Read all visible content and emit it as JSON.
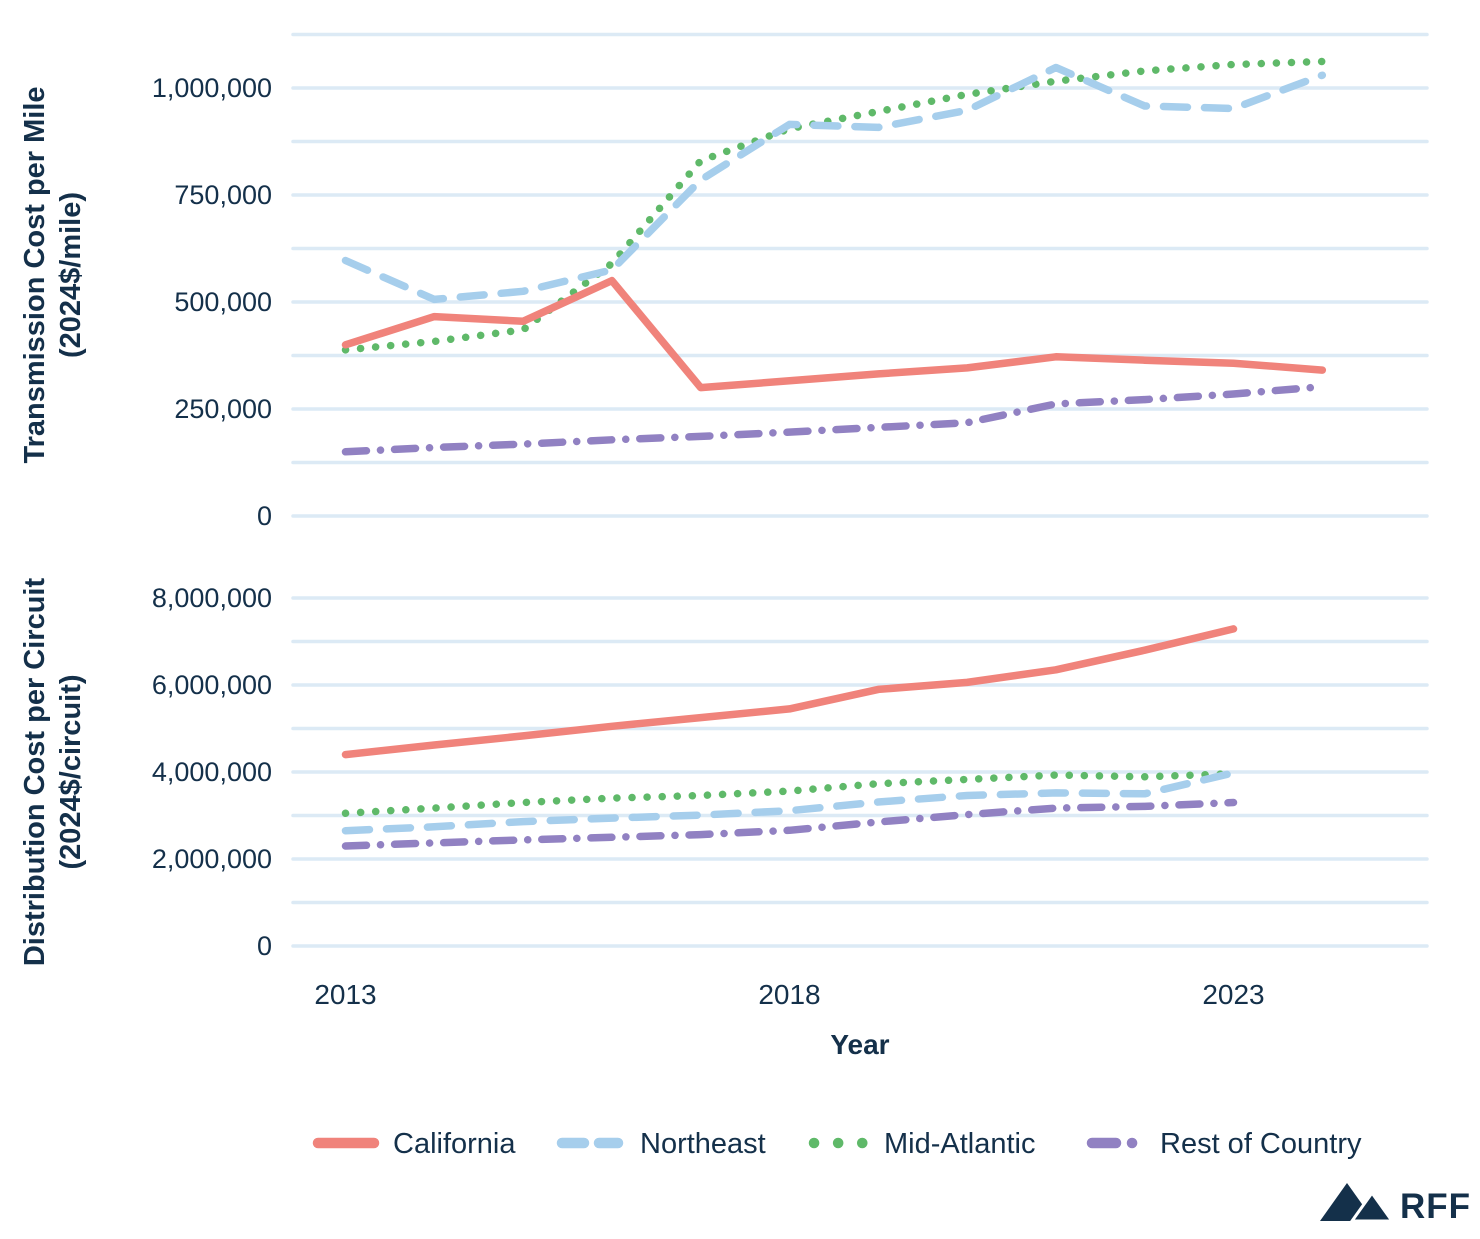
{
  "colors": {
    "california": "#F0837B",
    "northeast": "#A6CEEC",
    "mid_atlantic": "#5FB969",
    "rest_of_country": "#9181C2",
    "gridline": "#DCEAF5",
    "text": "#14304A",
    "logo": "#14304A",
    "background": "#FFFFFF"
  },
  "x_axis": {
    "title": "Year",
    "ticks": [
      {
        "value": 2013,
        "label": "2013"
      },
      {
        "value": 2018,
        "label": "2018"
      },
      {
        "value": 2023,
        "label": "2023"
      }
    ]
  },
  "legend": [
    {
      "label": "California",
      "color": "california",
      "dash": "solid"
    },
    {
      "label": "Northeast",
      "color": "northeast",
      "dash": "dashed"
    },
    {
      "label": "Mid-Atlantic",
      "color": "mid_atlantic",
      "dash": "dotted"
    },
    {
      "label": "Rest of Country",
      "color": "rest_of_country",
      "dash": "dashdot"
    }
  ],
  "logo": {
    "text": "RFF"
  },
  "chart_data": [
    {
      "type": "line",
      "id": "transmission",
      "y_axis": {
        "title_line1": "Transmission Cost per Mile",
        "title_line2": "(2024$/mile)",
        "max_grid": 1125000,
        "grid_step": 125000,
        "ticks": [
          {
            "value": 1000000,
            "label": "1,000,000"
          },
          {
            "value": 750000,
            "label": "750,000"
          },
          {
            "value": 500000,
            "label": "500,000"
          },
          {
            "value": 250000,
            "label": "250,000"
          },
          {
            "value": 0,
            "label": "0"
          }
        ]
      },
      "x": [
        2013,
        2014,
        2015,
        2016,
        2017,
        2018,
        2019,
        2020,
        2021,
        2022,
        2023,
        2024
      ],
      "series": [
        {
          "name": "Mid-Atlantic",
          "color": "mid_atlantic",
          "dash": "dotted",
          "values": [
            388000,
            408000,
            435000,
            590000,
            830000,
            905000,
            945000,
            985000,
            1016000,
            1040000,
            1055000,
            1062000
          ]
        },
        {
          "name": "Northeast",
          "color": "northeast",
          "dash": "dashed",
          "values": [
            597000,
            506000,
            525000,
            575000,
            785000,
            915000,
            908000,
            948000,
            1048000,
            958000,
            952000,
            1030000
          ]
        },
        {
          "name": "Rest of Country",
          "color": "rest_of_country",
          "dash": "dashdot",
          "values": [
            150000,
            160000,
            168000,
            178000,
            186000,
            196000,
            207000,
            218000,
            262000,
            272000,
            285000,
            302000
          ]
        },
        {
          "name": "California",
          "color": "california",
          "dash": "solid",
          "values": [
            400000,
            466000,
            455000,
            550000,
            300000,
            316000,
            332000,
            346000,
            372000,
            364000,
            357000,
            341000
          ]
        }
      ]
    },
    {
      "type": "line",
      "id": "distribution",
      "y_axis": {
        "title_line1": "Distribution Cost per Circuit",
        "title_line2": "(2024$/circuit)",
        "max_grid": 8000000,
        "grid_step": 1000000,
        "ticks": [
          {
            "value": 8000000,
            "label": "8,000,000"
          },
          {
            "value": 6000000,
            "label": "6,000,000"
          },
          {
            "value": 4000000,
            "label": "4,000,000"
          },
          {
            "value": 2000000,
            "label": "2,000,000"
          },
          {
            "value": 0,
            "label": "0"
          }
        ]
      },
      "x": [
        2013,
        2014,
        2015,
        2016,
        2017,
        2018,
        2019,
        2020,
        2021,
        2022,
        2023
      ],
      "series": [
        {
          "name": "Mid-Atlantic",
          "color": "mid_atlantic",
          "dash": "dotted",
          "values": [
            3050000,
            3170000,
            3300000,
            3400000,
            3460000,
            3560000,
            3730000,
            3830000,
            3930000,
            3890000,
            3960000
          ]
        },
        {
          "name": "Northeast",
          "color": "northeast",
          "dash": "dashed",
          "values": [
            2650000,
            2740000,
            2860000,
            2940000,
            3010000,
            3110000,
            3310000,
            3460000,
            3520000,
            3500000,
            3980000
          ]
        },
        {
          "name": "Rest of Country",
          "color": "rest_of_country",
          "dash": "dashdot",
          "values": [
            2300000,
            2370000,
            2440000,
            2500000,
            2560000,
            2660000,
            2850000,
            3020000,
            3170000,
            3210000,
            3300000
          ]
        },
        {
          "name": "California",
          "color": "california",
          "dash": "solid",
          "values": [
            4400000,
            4620000,
            4830000,
            5050000,
            5250000,
            5450000,
            5900000,
            6060000,
            6350000,
            6800000,
            7290000
          ]
        }
      ]
    }
  ]
}
